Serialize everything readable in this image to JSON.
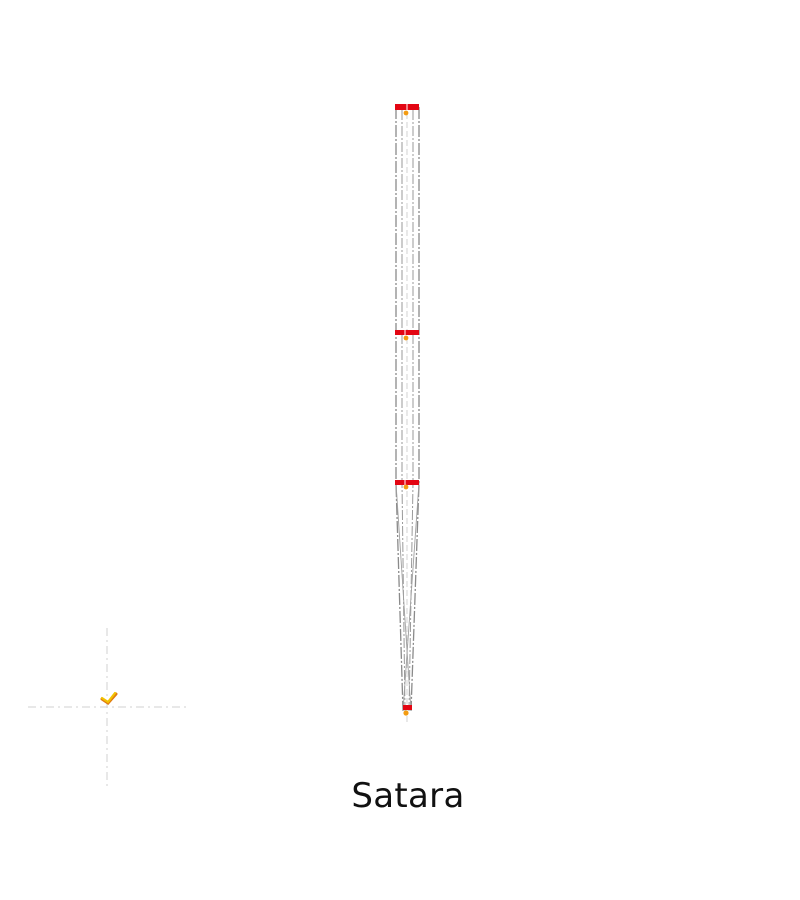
{
  "caption": "Satara",
  "colors": {
    "frame_line": "#8a8a8a",
    "inner_line": "#9a9a9a",
    "axis_guide": "#d9d9d9",
    "crossbar": "#e30613",
    "node": "#f39c12",
    "north_tick": "#f2c200",
    "north_tick_shadow": "#e07a10"
  },
  "icons": {
    "origin_marker": "crosshair-icon",
    "north_marker": "checkmark-icon"
  }
}
